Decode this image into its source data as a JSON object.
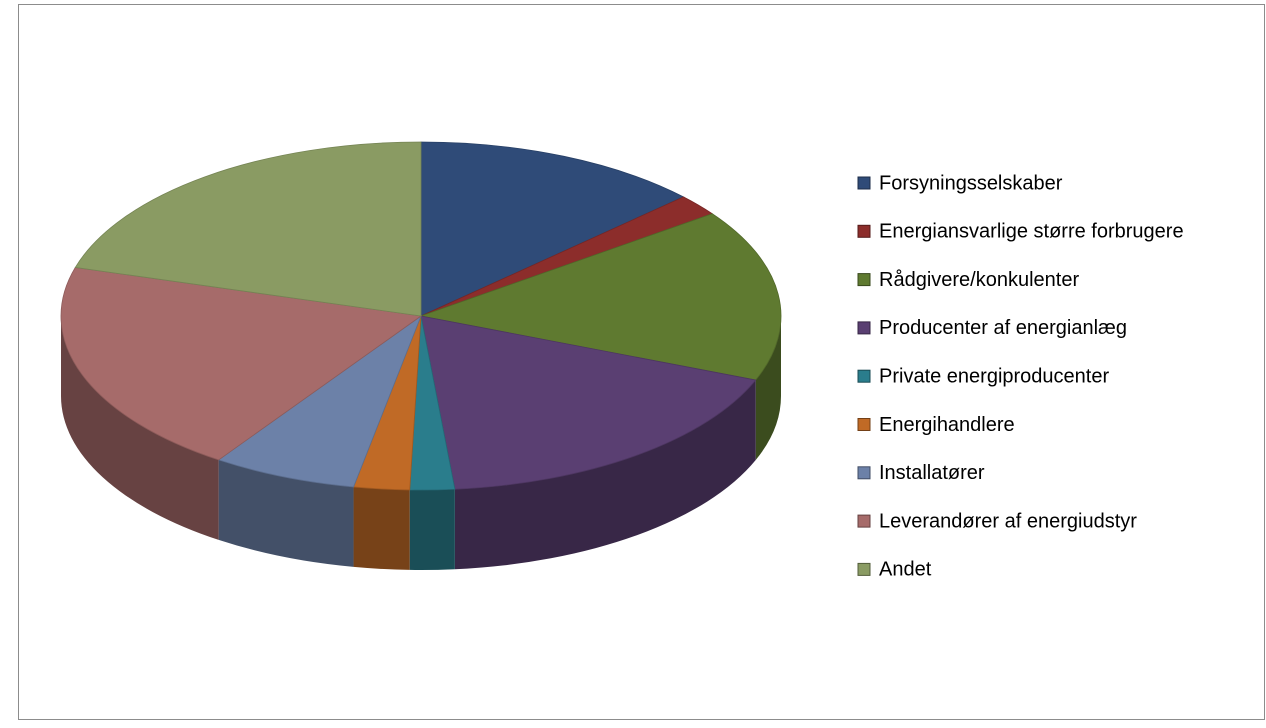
{
  "chart_data": {
    "type": "pie",
    "categories": [
      "Forsyningsselskaber",
      "Energiansvarlige større forbrugere",
      "Rådgivere/konkulenter",
      "Producenter af energianlæg",
      "Private energiproducenter",
      "Energihandlere",
      "Installatører",
      "Leverandører af energiudstyr",
      "Andet"
    ],
    "values": [
      13,
      2,
      16,
      17.5,
      2,
      2.5,
      6.5,
      20,
      20.5
    ],
    "colors": [
      "#2f4b78",
      "#8c2d2b",
      "#5f7a30",
      "#5a3f72",
      "#2a7d8c",
      "#c06a26",
      "#6c81a8",
      "#a66b6a",
      "#8a9b63"
    ],
    "legend": "right"
  }
}
